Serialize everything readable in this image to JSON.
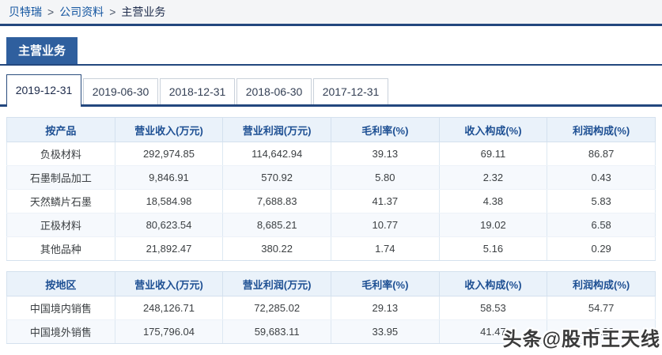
{
  "breadcrumb": {
    "separator": ">",
    "items": [
      {
        "label": "贝特瑞",
        "link": true
      },
      {
        "label": "公司资料",
        "link": true
      },
      {
        "label": "主营业务",
        "link": false
      }
    ]
  },
  "page_title": "主营业务",
  "tabs": [
    {
      "label": "2019-12-31",
      "active": true
    },
    {
      "label": "2019-06-30",
      "active": false
    },
    {
      "label": "2018-12-31",
      "active": false
    },
    {
      "label": "2018-06-30",
      "active": false
    },
    {
      "label": "2017-12-31",
      "active": false
    }
  ],
  "tables": [
    {
      "name": "by-product",
      "headers": [
        "按产品",
        "营业收入(万元)",
        "营业利润(万元)",
        "毛利率(%)",
        "收入构成(%)",
        "利润构成(%)"
      ],
      "rows": [
        [
          "负极材料",
          "292,974.85",
          "114,642.94",
          "39.13",
          "69.11",
          "86.87"
        ],
        [
          "石墨制品加工",
          "9,846.91",
          "570.92",
          "5.80",
          "2.32",
          "0.43"
        ],
        [
          "天然鳞片石墨",
          "18,584.98",
          "7,688.83",
          "41.37",
          "4.38",
          "5.83"
        ],
        [
          "正极材料",
          "80,623.54",
          "8,685.21",
          "10.77",
          "19.02",
          "6.58"
        ],
        [
          "其他品种",
          "21,892.47",
          "380.22",
          "1.74",
          "5.16",
          "0.29"
        ]
      ]
    },
    {
      "name": "by-region",
      "headers": [
        "按地区",
        "营业收入(万元)",
        "营业利润(万元)",
        "毛利率(%)",
        "收入构成(%)",
        "利润构成(%)"
      ],
      "rows": [
        [
          "中国境内销售",
          "248,126.71",
          "72,285.02",
          "29.13",
          "58.53",
          "54.77"
        ],
        [
          "中国境外销售",
          "175,796.04",
          "59,683.11",
          "33.95",
          "41.47",
          "45.23"
        ]
      ]
    }
  ],
  "watermark": "头条@股市王天线",
  "colors": {
    "accent_blue": "#2f5f9e",
    "line_navy": "#23477e",
    "table_header_bg": "#eaf2fa",
    "table_header_text": "#1d4f93",
    "link_blue": "#1355a0",
    "stripe_row_bg": "#f6f9fd"
  }
}
